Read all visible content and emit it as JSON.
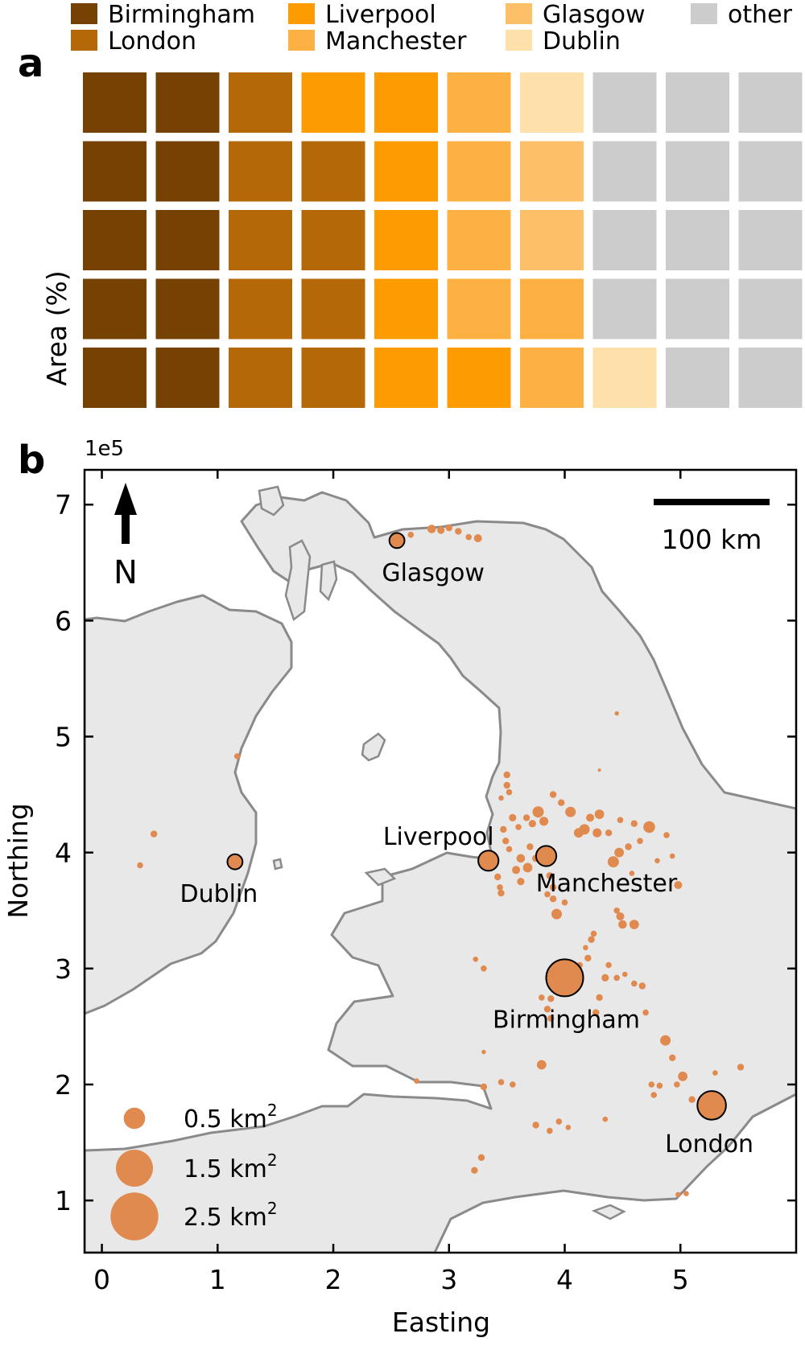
{
  "panel_a": {
    "letter": "a",
    "ylabel": "Area (%)",
    "legend": [
      {
        "name": "Birmingham",
        "color": "#754203"
      },
      {
        "name": "Liverpool",
        "color": "#fd9b02"
      },
      {
        "name": "Glasgow",
        "color": "#fdc069"
      },
      {
        "name": "other",
        "color": "#cccccc"
      },
      {
        "name": "London",
        "color": "#b46808"
      },
      {
        "name": "Manchester",
        "color": "#fdb142"
      },
      {
        "name": "Dublin",
        "color": "#fee0ab"
      }
    ]
  },
  "panel_b": {
    "letter": "b",
    "offset_text": "1e5",
    "north_label": "N",
    "scalebar_label": "100 km",
    "size_legend": [
      {
        "label": "0.5 km",
        "sup": "2",
        "area_km2": 0.5
      },
      {
        "label": "1.5 km",
        "sup": "2",
        "area_km2": 1.5
      },
      {
        "label": "2.5 km",
        "sup": "2",
        "area_km2": 2.5
      }
    ],
    "colors": {
      "land": "#e8e8e8",
      "coast": "#8a8a8a",
      "points": "#e08a4f",
      "sea": "#ffffff"
    }
  },
  "chart_data": [
    {
      "type": "waffle",
      "ylabel": "Area (%)",
      "grid": {
        "rows": 5,
        "cols": 10
      },
      "categories": [
        "Birmingham",
        "London",
        "Liverpool",
        "Manchester",
        "Glasgow",
        "Dublin",
        "other"
      ],
      "values": [
        10,
        9,
        7,
        6,
        2,
        2,
        14
      ],
      "fill_order": "column-major, bottom to top",
      "legend_placement": "top"
    },
    {
      "type": "scatter",
      "xlabel": "Easting",
      "ylabel": "Northing",
      "x_scale": "1e5",
      "y_scale": "1e5",
      "xlim": [
        -0.15,
        6.0
      ],
      "ylim": [
        0.55,
        7.3
      ],
      "xticks": [
        0,
        1,
        2,
        3,
        4,
        5
      ],
      "yticks": [
        1,
        2,
        3,
        4,
        5,
        6,
        7
      ],
      "marker_size": "area in km2",
      "labelled_points": [
        {
          "name": "Glasgow",
          "x": 2.55,
          "y": 6.69,
          "area_km2": 0.25
        },
        {
          "name": "Liverpool",
          "x": 3.34,
          "y": 3.93,
          "area_km2": 0.45
        },
        {
          "name": "Manchester",
          "x": 3.84,
          "y": 3.97,
          "area_km2": 0.45
        },
        {
          "name": "Dublin",
          "x": 1.15,
          "y": 3.92,
          "area_km2": 0.25
        },
        {
          "name": "Birmingham",
          "x": 4.0,
          "y": 2.92,
          "area_km2": 1.5
        },
        {
          "name": "London",
          "x": 5.27,
          "y": 1.82,
          "area_km2": 0.9
        }
      ],
      "points": [
        [
          2.67,
          6.74,
          0.04
        ],
        [
          2.85,
          6.79,
          0.08
        ],
        [
          2.93,
          6.78,
          0.06
        ],
        [
          3.0,
          6.8,
          0.05
        ],
        [
          3.08,
          6.77,
          0.05
        ],
        [
          3.17,
          6.72,
          0.04
        ],
        [
          3.25,
          6.71,
          0.07
        ],
        [
          1.17,
          4.83,
          0.04
        ],
        [
          0.45,
          4.16,
          0.05
        ],
        [
          0.33,
          3.89,
          0.04
        ],
        [
          4.45,
          5.2,
          0.02
        ],
        [
          4.3,
          4.71,
          0.01
        ],
        [
          3.5,
          4.67,
          0.05
        ],
        [
          3.5,
          4.58,
          0.05
        ],
        [
          3.52,
          4.52,
          0.04
        ],
        [
          3.45,
          4.47,
          0.03
        ],
        [
          3.55,
          4.3,
          0.06
        ],
        [
          3.6,
          4.22,
          0.04
        ],
        [
          3.67,
          4.3,
          0.05
        ],
        [
          3.72,
          4.25,
          0.06
        ],
        [
          3.77,
          4.35,
          0.14
        ],
        [
          3.82,
          4.27,
          0.09
        ],
        [
          3.9,
          4.5,
          0.05
        ],
        [
          3.97,
          4.43,
          0.05
        ],
        [
          4.05,
          4.35,
          0.12
        ],
        [
          4.17,
          4.2,
          0.12
        ],
        [
          4.22,
          4.3,
          0.07
        ],
        [
          4.28,
          4.17,
          0.09
        ],
        [
          4.3,
          4.33,
          0.1
        ],
        [
          4.12,
          4.17,
          0.1
        ],
        [
          4.38,
          4.17,
          0.05
        ],
        [
          4.48,
          4.28,
          0.04
        ],
        [
          4.6,
          4.25,
          0.05
        ],
        [
          4.73,
          4.22,
          0.15
        ],
        [
          4.65,
          4.1,
          0.04
        ],
        [
          4.55,
          4.05,
          0.05
        ],
        [
          4.47,
          4.0,
          0.1
        ],
        [
          4.42,
          3.92,
          0.14
        ],
        [
          4.58,
          3.82,
          0.03
        ],
        [
          4.98,
          3.72,
          0.07
        ],
        [
          4.88,
          4.15,
          0.04
        ],
        [
          4.93,
          3.97,
          0.03
        ],
        [
          4.8,
          3.93,
          0.03
        ],
        [
          3.47,
          4.2,
          0.05
        ],
        [
          3.49,
          4.1,
          0.05
        ],
        [
          3.52,
          4.03,
          0.04
        ],
        [
          3.62,
          3.95,
          0.08
        ],
        [
          3.68,
          3.87,
          0.1
        ],
        [
          3.58,
          3.85,
          0.07
        ],
        [
          3.62,
          3.75,
          0.06
        ],
        [
          3.42,
          3.79,
          0.05
        ],
        [
          3.44,
          3.7,
          0.04
        ],
        [
          3.45,
          3.65,
          0.05
        ],
        [
          3.7,
          4.05,
          0.05
        ],
        [
          3.75,
          3.95,
          0.06
        ],
        [
          3.87,
          3.8,
          0.05
        ],
        [
          3.9,
          3.7,
          0.05
        ],
        [
          3.85,
          3.64,
          0.04
        ],
        [
          3.9,
          3.6,
          0.05
        ],
        [
          3.93,
          3.47,
          0.12
        ],
        [
          4.0,
          3.57,
          0.04
        ],
        [
          4.48,
          3.45,
          0.07
        ],
        [
          4.5,
          3.38,
          0.08
        ],
        [
          4.45,
          3.5,
          0.04
        ],
        [
          4.6,
          3.38,
          0.1
        ],
        [
          4.25,
          3.3,
          0.04
        ],
        [
          4.23,
          3.25,
          0.05
        ],
        [
          4.18,
          3.18,
          0.03
        ],
        [
          4.2,
          3.09,
          0.05
        ],
        [
          4.13,
          3.03,
          0.04
        ],
        [
          4.35,
          2.92,
          0.06
        ],
        [
          4.38,
          3.03,
          0.04
        ],
        [
          4.45,
          2.92,
          0.04
        ],
        [
          4.52,
          2.95,
          0.03
        ],
        [
          4.6,
          2.87,
          0.04
        ],
        [
          4.67,
          2.85,
          0.05
        ],
        [
          4.7,
          2.62,
          0.04
        ],
        [
          4.3,
          2.75,
          0.05
        ],
        [
          4.27,
          2.62,
          0.05
        ],
        [
          3.88,
          2.74,
          0.05
        ],
        [
          3.85,
          2.65,
          0.05
        ],
        [
          3.88,
          2.57,
          0.05
        ],
        [
          3.8,
          2.75,
          0.04
        ],
        [
          3.3,
          3.0,
          0.04
        ],
        [
          3.23,
          3.08,
          0.03
        ],
        [
          4.87,
          2.38,
          0.12
        ],
        [
          4.93,
          2.23,
          0.05
        ],
        [
          5.02,
          2.07,
          0.1
        ],
        [
          4.97,
          2.0,
          0.04
        ],
        [
          4.82,
          1.99,
          0.04
        ],
        [
          4.75,
          2.0,
          0.04
        ],
        [
          4.77,
          1.91,
          0.04
        ],
        [
          5.1,
          1.87,
          0.05
        ],
        [
          5.52,
          2.15,
          0.05
        ],
        [
          5.3,
          2.1,
          0.03
        ],
        [
          3.8,
          2.17,
          0.1
        ],
        [
          3.55,
          2.0,
          0.04
        ],
        [
          3.45,
          2.02,
          0.04
        ],
        [
          3.3,
          1.98,
          0.05
        ],
        [
          2.72,
          2.03,
          0.03
        ],
        [
          3.95,
          1.68,
          0.04
        ],
        [
          4.03,
          1.63,
          0.03
        ],
        [
          4.35,
          1.7,
          0.03
        ],
        [
          3.75,
          1.65,
          0.05
        ],
        [
          3.87,
          1.6,
          0.04
        ],
        [
          3.28,
          1.37,
          0.05
        ],
        [
          3.22,
          1.26,
          0.05
        ],
        [
          4.98,
          1.05,
          0.03
        ],
        [
          5.05,
          1.06,
          0.03
        ],
        [
          3.3,
          2.28,
          0.02
        ]
      ]
    }
  ]
}
